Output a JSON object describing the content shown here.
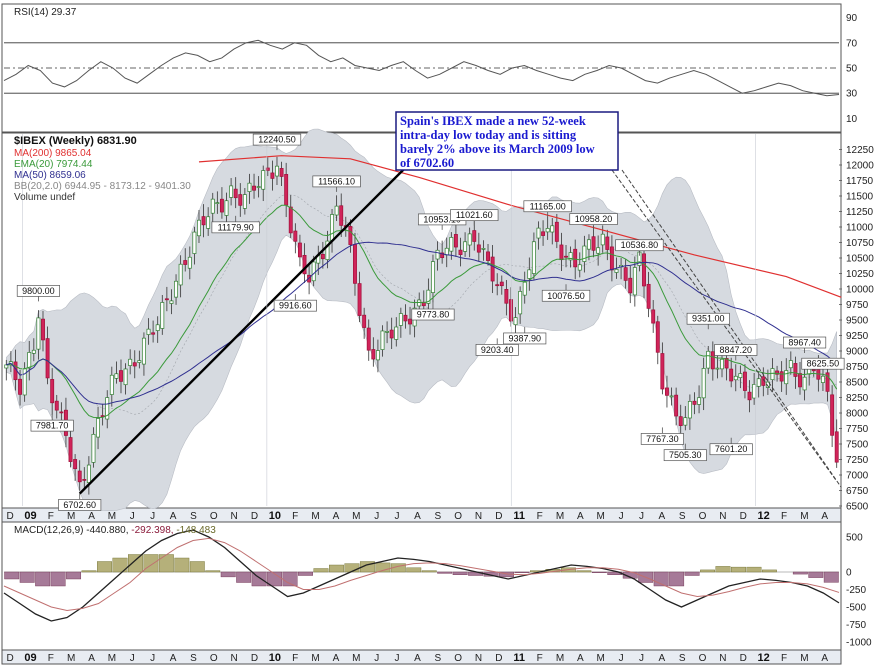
{
  "chart_data": {
    "type": "candlestick",
    "symbol_line": "$IBEX (Weekly) 6831.90",
    "price_axis": {
      "ylim": [
        6500,
        12500
      ],
      "ticks": [
        6500,
        6750,
        7000,
        7250,
        7500,
        7750,
        8000,
        8250,
        8500,
        8750,
        9000,
        9250,
        9500,
        9750,
        10000,
        10250,
        10500,
        10750,
        11000,
        11250,
        11500,
        11750,
        12000,
        12250
      ]
    },
    "time_axis": {
      "labels": [
        "D",
        "09",
        "F",
        "M",
        "A",
        "M",
        "J",
        "J",
        "A",
        "S",
        "O",
        "N",
        "D",
        "10",
        "F",
        "M",
        "A",
        "M",
        "J",
        "J",
        "A",
        "S",
        "O",
        "N",
        "D",
        "11",
        "F",
        "M",
        "A",
        "M",
        "J",
        "J",
        "A",
        "S",
        "O",
        "N",
        "D",
        "12",
        "F",
        "M",
        "A"
      ],
      "bold": [
        "09",
        "10",
        "11",
        "12"
      ]
    },
    "legend": [
      {
        "text": "MA(200) 9865.04",
        "color": "#e03030"
      },
      {
        "text": "EMA(20) 7974.44",
        "color": "#3a9a3a"
      },
      {
        "text": "MA(50) 8659.06",
        "color": "#303090"
      },
      {
        "text": "BB(20,2.0) 6944.95 - 8173.12 - 9401.30",
        "color": "#888888"
      },
      {
        "text": "Volume undef",
        "color": "#333333"
      }
    ],
    "annotations": [
      {
        "label": "12240.50",
        "t": 59,
        "v": 12240.5,
        "pos": "above"
      },
      {
        "label": "11566.10",
        "t": 72,
        "v": 11566.1,
        "pos": "above"
      },
      {
        "label": "11179.90",
        "t": 50,
        "v": 11179.9,
        "pos": "below"
      },
      {
        "label": "9800.00",
        "t": 7,
        "v": 9800,
        "pos": "above"
      },
      {
        "label": "7981.70",
        "t": 10,
        "v": 7981.7,
        "pos": "below"
      },
      {
        "label": "6702.60",
        "t": 16,
        "v": 6702.6,
        "pos": "below"
      },
      {
        "label": "9916.60",
        "t": 63,
        "v": 9916.6,
        "pos": "below"
      },
      {
        "label": "10953.10",
        "t": 95,
        "v": 10953.1,
        "pos": "above"
      },
      {
        "label": "11021.60",
        "t": 102,
        "v": 11021.6,
        "pos": "above"
      },
      {
        "label": "9773.80",
        "t": 93,
        "v": 9773.8,
        "pos": "below"
      },
      {
        "label": "9387.90",
        "t": 113,
        "v": 9387.9,
        "pos": "below"
      },
      {
        "label": "9203.40",
        "t": 107,
        "v": 9203.4,
        "pos": "below"
      },
      {
        "label": "11165.00",
        "t": 118,
        "v": 11165,
        "pos": "above"
      },
      {
        "label": "10958.20",
        "t": 128,
        "v": 10958.2,
        "pos": "above"
      },
      {
        "label": "10076.50",
        "t": 122,
        "v": 10076.5,
        "pos": "below"
      },
      {
        "label": "10536.80",
        "t": 138,
        "v": 10536.8,
        "pos": "above"
      },
      {
        "label": "7767.30",
        "t": 143,
        "v": 7767.3,
        "pos": "below"
      },
      {
        "label": "7505.30",
        "t": 148,
        "v": 7505.3,
        "pos": "below"
      },
      {
        "label": "9351.00",
        "t": 153,
        "v": 9351,
        "pos": "above"
      },
      {
        "label": "8847.20",
        "t": 159,
        "v": 8847.2,
        "pos": "above"
      },
      {
        "label": "7601.20",
        "t": 158,
        "v": 7601.2,
        "pos": "below"
      },
      {
        "label": "8967.40",
        "t": 174,
        "v": 8967.4,
        "pos": "above"
      },
      {
        "label": "8625.50",
        "t": 178,
        "v": 8625.5,
        "pos": "above"
      }
    ],
    "callout_text": [
      "Spain's IBEX made a new 52-week",
      "intra-day low today and is sitting",
      "barely 2% above its March 2009 low",
      "of 6702.60"
    ],
    "rsi": {
      "label": "RSI(14) 29.37",
      "ylim": [
        0,
        100
      ],
      "ticks": [
        10,
        30,
        50,
        70,
        90
      ],
      "levels": [
        30,
        50,
        70
      ],
      "values": [
        40,
        45,
        52,
        48,
        38,
        35,
        40,
        48,
        55,
        50,
        42,
        38,
        45,
        52,
        58,
        62,
        60,
        55,
        58,
        65,
        70,
        72,
        68,
        65,
        70,
        68,
        60,
        55,
        58,
        52,
        50,
        48,
        52,
        55,
        48,
        42,
        45,
        50,
        55,
        52,
        48,
        45,
        50,
        52,
        48,
        45,
        42,
        40,
        45,
        48,
        52,
        50,
        45,
        40,
        38,
        42,
        45,
        48,
        45,
        40,
        35,
        30,
        32,
        35,
        38,
        36,
        32,
        30,
        28,
        29
      ]
    },
    "macd": {
      "label": "MACD(12,26,9) -440.880, -292.398, -148.483",
      "label_colors": [
        "#222222",
        "#8a1a3a",
        "#6a6a2a"
      ],
      "ylim": [
        -1100,
        700
      ],
      "ticks": [
        500,
        0,
        -500,
        -1000
      ],
      "extra_ticks": [
        -250,
        -750
      ],
      "macd": [
        -300,
        -450,
        -600,
        -700,
        -650,
        -500,
        -300,
        -100,
        100,
        300,
        450,
        550,
        600,
        500,
        350,
        150,
        -50,
        -200,
        -350,
        -300,
        -200,
        -100,
        0,
        100,
        150,
        200,
        180,
        150,
        100,
        50,
        0,
        -50,
        -100,
        -50,
        0,
        50,
        100,
        80,
        50,
        0,
        -100,
        -250,
        -400,
        -500,
        -400,
        -300,
        -200,
        -150,
        -100,
        -120,
        -150,
        -200,
        -300,
        -441
      ],
      "signal": [
        -200,
        -300,
        -400,
        -500,
        -550,
        -520,
        -450,
        -300,
        -150,
        50,
        200,
        350,
        450,
        480,
        420,
        300,
        150,
        0,
        -150,
        -250,
        -250,
        -200,
        -120,
        -50,
        20,
        80,
        120,
        130,
        120,
        90,
        50,
        10,
        -30,
        -40,
        -20,
        10,
        40,
        60,
        60,
        40,
        -10,
        -100,
        -200,
        -300,
        -350,
        -330,
        -280,
        -220,
        -170,
        -150,
        -150,
        -170,
        -220,
        -292
      ],
      "hist": [
        -100,
        -150,
        -200,
        -200,
        -100,
        20,
        150,
        200,
        250,
        250,
        250,
        200,
        150,
        20,
        -70,
        -150,
        -200,
        -200,
        -200,
        -50,
        50,
        100,
        120,
        150,
        130,
        120,
        60,
        20,
        -20,
        -40,
        -50,
        -60,
        -70,
        -10,
        20,
        40,
        60,
        20,
        -10,
        -40,
        -90,
        -150,
        -200,
        -200,
        -50,
        30,
        80,
        70,
        70,
        30,
        0,
        -30,
        -80,
        -148
      ]
    }
  }
}
